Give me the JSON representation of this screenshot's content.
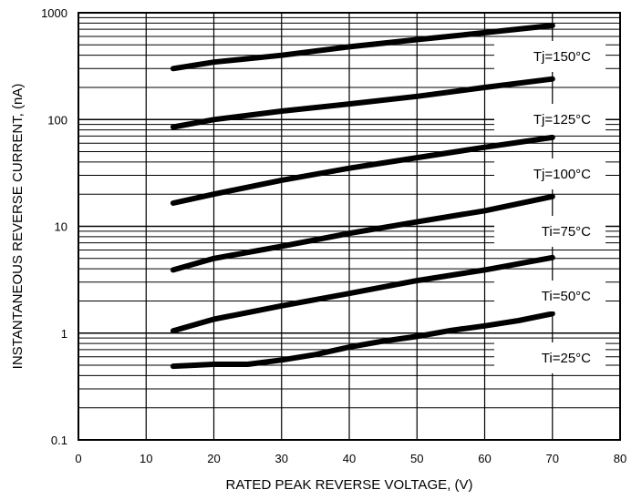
{
  "chart_data": {
    "type": "line",
    "title": "",
    "xlabel": "RATED PEAK REVERSE VOLTAGE, (V)",
    "ylabel": "INSTANTANEOUS REVERSE CURRENT, (nA)",
    "xlim": [
      0,
      80
    ],
    "ylim": [
      0.1,
      1000
    ],
    "yscale": "log",
    "grid": true,
    "x_ticks": [
      "0",
      "10",
      "20",
      "30",
      "40",
      "50",
      "60",
      "70",
      "80"
    ],
    "y_ticks": [
      "0.1",
      "1",
      "10",
      "100",
      "1000"
    ],
    "series": [
      {
        "name": "Tj=150°C",
        "x": [
          14,
          20,
          30,
          40,
          50,
          60,
          70
        ],
        "y": [
          300,
          345,
          400,
          480,
          560,
          650,
          760
        ]
      },
      {
        "name": "Tj=125°C",
        "x": [
          14,
          20,
          30,
          40,
          50,
          60,
          70
        ],
        "y": [
          85,
          100,
          120,
          140,
          165,
          200,
          240
        ]
      },
      {
        "name": "Tj=100°C",
        "x": [
          14,
          20,
          30,
          40,
          50,
          60,
          70
        ],
        "y": [
          16.5,
          20,
          27,
          35,
          44,
          55,
          68
        ]
      },
      {
        "name": "Ti=75°C",
        "x": [
          14,
          20,
          30,
          40,
          50,
          60,
          70
        ],
        "y": [
          3.9,
          5.0,
          6.5,
          8.6,
          11,
          14,
          19
        ]
      },
      {
        "name": "Ti=50°C",
        "x": [
          14,
          20,
          30,
          40,
          50,
          60,
          70
        ],
        "y": [
          1.05,
          1.35,
          1.8,
          2.35,
          3.1,
          3.9,
          5.1
        ]
      },
      {
        "name": "Ti=25°C",
        "x": [
          14,
          20,
          25,
          30,
          35,
          40,
          45,
          50,
          55,
          60,
          65,
          70
        ],
        "y": [
          0.49,
          0.51,
          0.51,
          0.56,
          0.63,
          0.74,
          0.84,
          0.93,
          1.06,
          1.17,
          1.31,
          1.52
        ]
      }
    ]
  }
}
